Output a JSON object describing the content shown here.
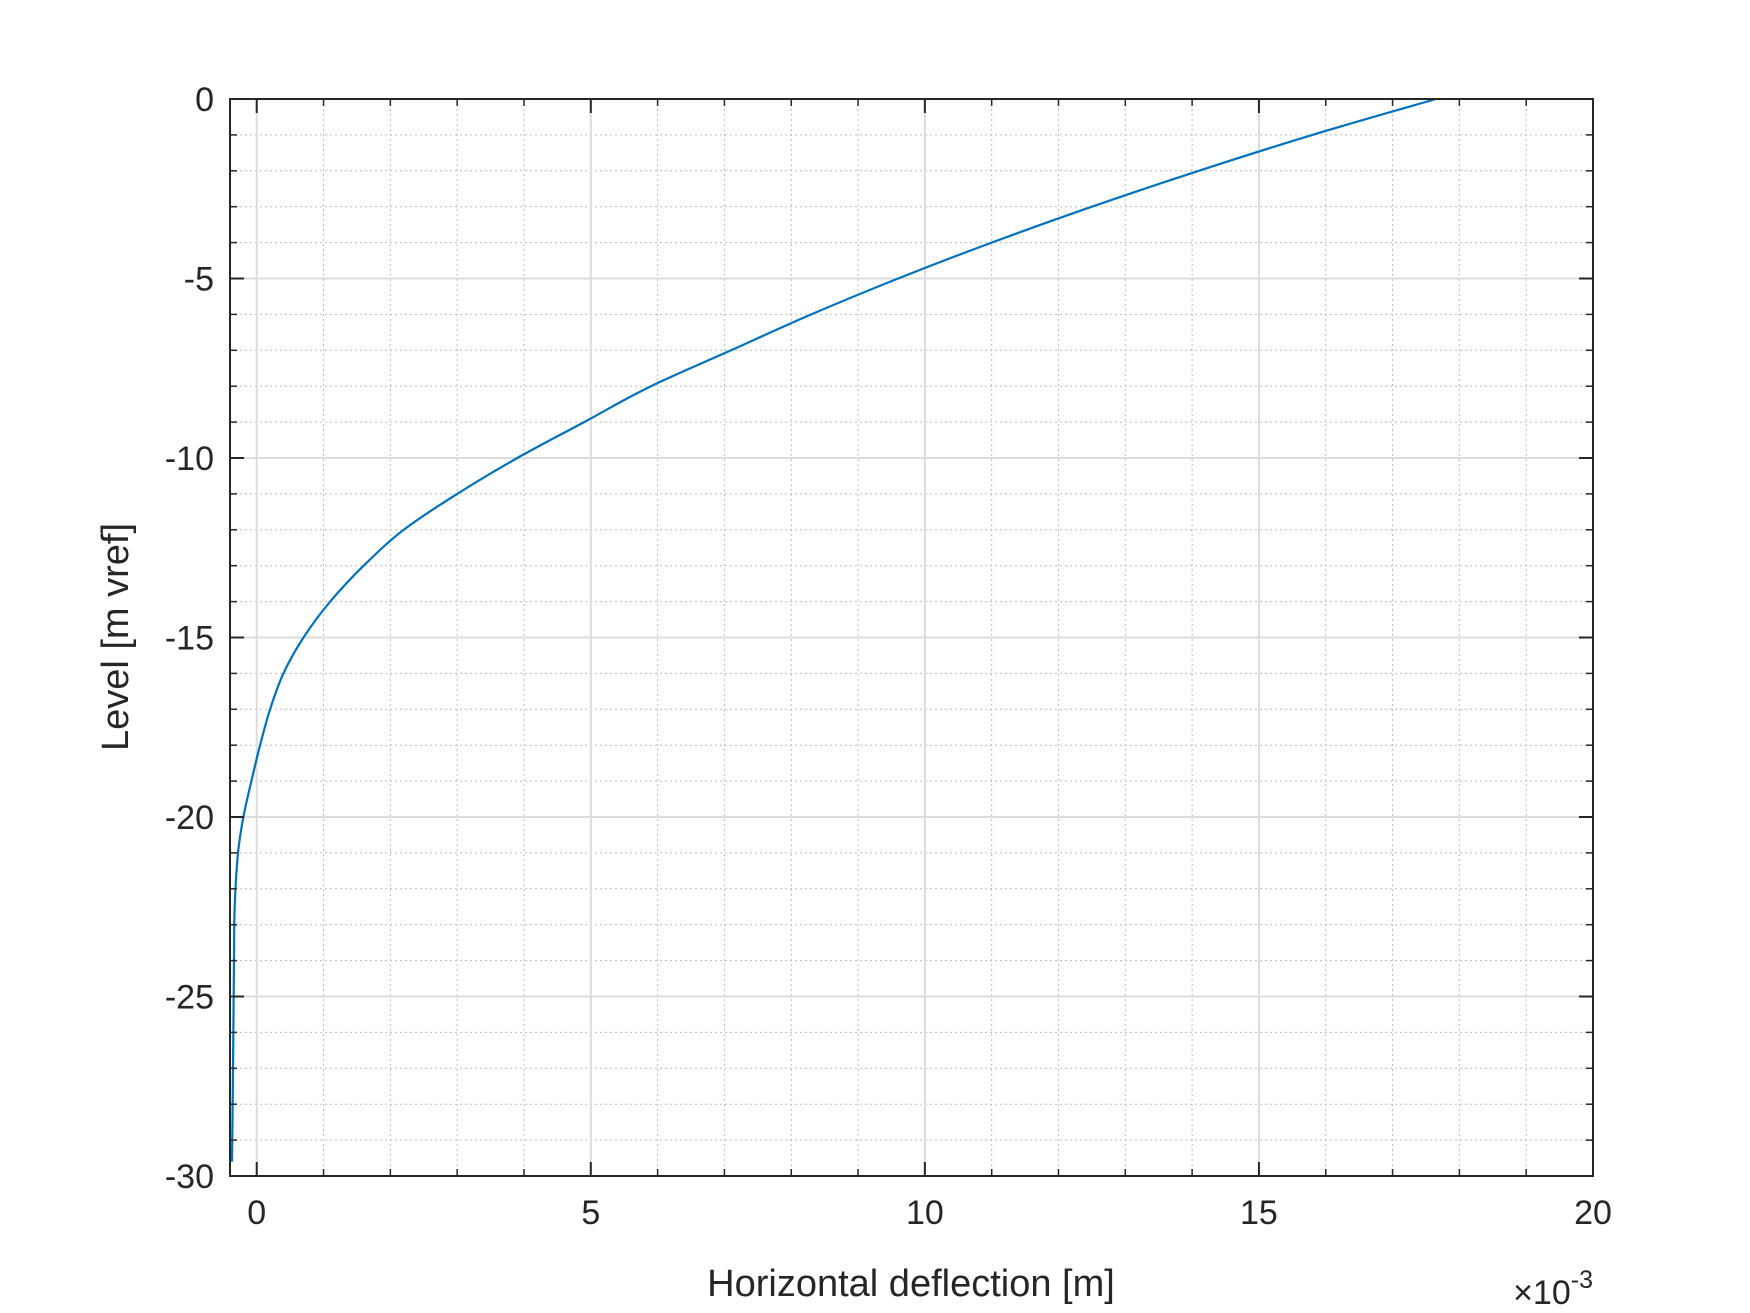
{
  "chart_data": {
    "type": "line",
    "xlabel": "Horizontal deflection [m]",
    "ylabel": "Level [m vref]",
    "x_multiplier": {
      "times": "×10",
      "exponent": "-3"
    },
    "xlim": [
      -0.0004,
      0.02
    ],
    "ylim": [
      -30,
      0
    ],
    "x_ticks": [
      0,
      0.005,
      0.01,
      0.015,
      0.02
    ],
    "x_tick_labels": [
      "0",
      "5",
      "10",
      "15",
      "20"
    ],
    "x_minor_step": 0.001,
    "y_ticks": [
      -30,
      -25,
      -20,
      -15,
      -10,
      -5,
      0
    ],
    "y_tick_labels": [
      "-30",
      "-25",
      "-20",
      "-15",
      "-10",
      "-5",
      "0"
    ],
    "y_minor_step": 1,
    "grid": true,
    "minor_grid": true,
    "series": [
      {
        "color": "#0072BD",
        "points": [
          {
            "x": -0.00037,
            "y": -29.6
          },
          {
            "x": -0.00036,
            "y": -28.0
          },
          {
            "x": -0.00035,
            "y": -26.0
          },
          {
            "x": -0.00034,
            "y": -24.0
          },
          {
            "x": -0.00033,
            "y": -22.5
          },
          {
            "x": -0.00028,
            "y": -21.0
          },
          {
            "x": -0.0002,
            "y": -20.0
          },
          {
            "x": -8e-05,
            "y": -19.0
          },
          {
            "x": 5e-05,
            "y": -18.0
          },
          {
            "x": 0.0002,
            "y": -17.0
          },
          {
            "x": 0.0004,
            "y": -16.0
          },
          {
            "x": 0.0007,
            "y": -15.0
          },
          {
            "x": 0.0011,
            "y": -14.0
          },
          {
            "x": 0.0016,
            "y": -13.0
          },
          {
            "x": 0.0022,
            "y": -12.0
          },
          {
            "x": 0.003,
            "y": -11.0
          },
          {
            "x": 0.0039,
            "y": -10.0
          },
          {
            "x": 0.0049,
            "y": -9.0
          },
          {
            "x": 0.0059,
            "y": -8.0
          },
          {
            "x": 0.0071,
            "y": -7.0
          },
          {
            "x": 0.0083,
            "y": -6.0
          },
          {
            "x": 0.0096,
            "y": -5.0
          },
          {
            "x": 0.011,
            "y": -4.0
          },
          {
            "x": 0.0125,
            "y": -3.0
          },
          {
            "x": 0.0141,
            "y": -2.0
          },
          {
            "x": 0.0158,
            "y": -1.0
          },
          {
            "x": 0.01765,
            "y": 0.0
          }
        ]
      }
    ]
  }
}
